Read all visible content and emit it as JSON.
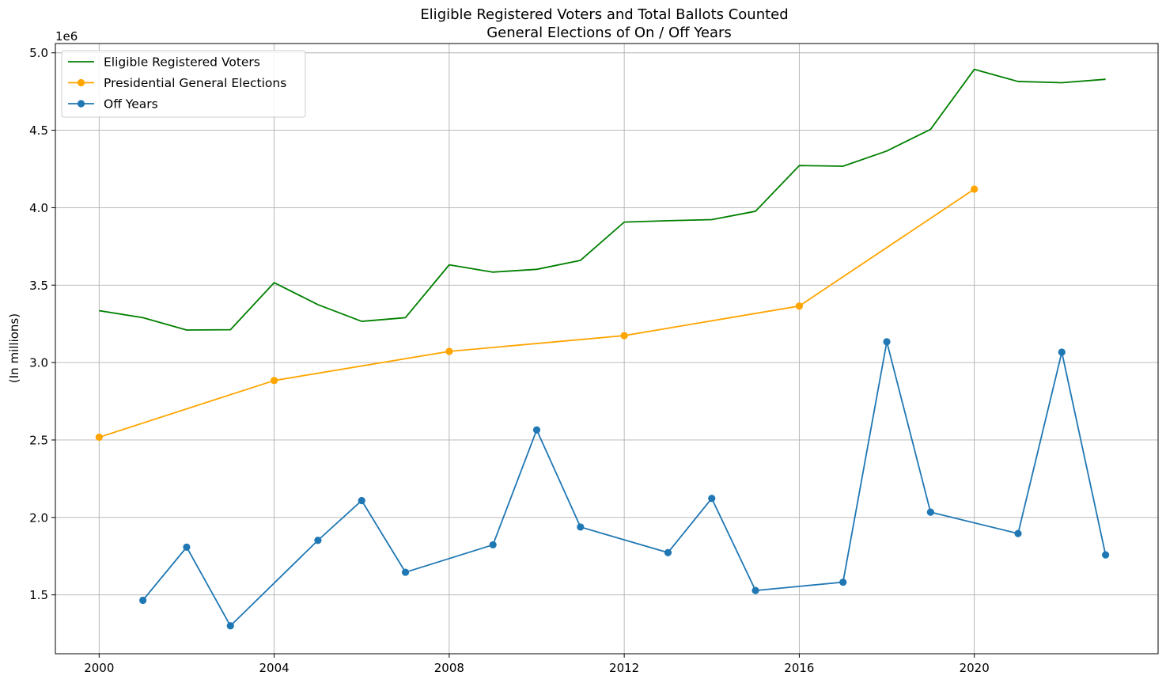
{
  "chart_data": {
    "type": "line",
    "title": "Eligible Registered Voters and Total Ballots Counted",
    "subtitle": "General Elections of On / Off Years",
    "ylabel": "(In millions)",
    "y_offset_label": "1e6",
    "xlim": [
      1999.0,
      2024.2
    ],
    "ylim": [
      1120000,
      5060000
    ],
    "x_ticks": [
      2000,
      2004,
      2008,
      2012,
      2016,
      2020
    ],
    "x_tick_labels": [
      "2000",
      "2004",
      "2008",
      "2012",
      "2016",
      "2020"
    ],
    "y_ticks": [
      1500000,
      2000000,
      2500000,
      3000000,
      3500000,
      4000000,
      4500000,
      5000000
    ],
    "y_tick_labels": [
      "1.5",
      "2.0",
      "2.5",
      "3.0",
      "3.5",
      "4.0",
      "4.5",
      "5.0"
    ],
    "grid": true,
    "legend_position": "top-left",
    "series": [
      {
        "name": "Eligible Registered Voters",
        "color": "#008000",
        "marker": false,
        "x": [
          2000,
          2001,
          2002,
          2003,
          2004,
          2005,
          2006,
          2007,
          2008,
          2009,
          2010,
          2011,
          2012,
          2013,
          2014,
          2015,
          2016,
          2017,
          2018,
          2019,
          2020,
          2021,
          2022,
          2023
        ],
        "y": [
          3335000,
          3290000,
          3210000,
          3212000,
          3516000,
          3374000,
          3266000,
          3290000,
          3631000,
          3584000,
          3602000,
          3660000,
          3907000,
          3916000,
          3923000,
          3977000,
          4272000,
          4268000,
          4366000,
          4506000,
          4893000,
          4815000,
          4807000,
          4829000
        ]
      },
      {
        "name": "Presidential General Elections",
        "color": "#ffa500",
        "marker": true,
        "x": [
          2000,
          2004,
          2008,
          2012,
          2016,
          2020
        ],
        "y": [
          2518000,
          2884000,
          3072000,
          3174000,
          3365000,
          4120000
        ]
      },
      {
        "name": "Off Years",
        "color": "#1f77b4",
        "marker": true,
        "x": [
          2001,
          2002,
          2003,
          2005,
          2006,
          2007,
          2009,
          2010,
          2011,
          2013,
          2014,
          2015,
          2017,
          2018,
          2019,
          2021,
          2022,
          2023
        ],
        "y": [
          1465000,
          1808000,
          1300000,
          1852000,
          2109000,
          1646000,
          1823000,
          2565000,
          1938000,
          1773000,
          2123000,
          1528000,
          1582000,
          3134000,
          2034000,
          1896000,
          3067000,
          1758000
        ]
      }
    ]
  }
}
